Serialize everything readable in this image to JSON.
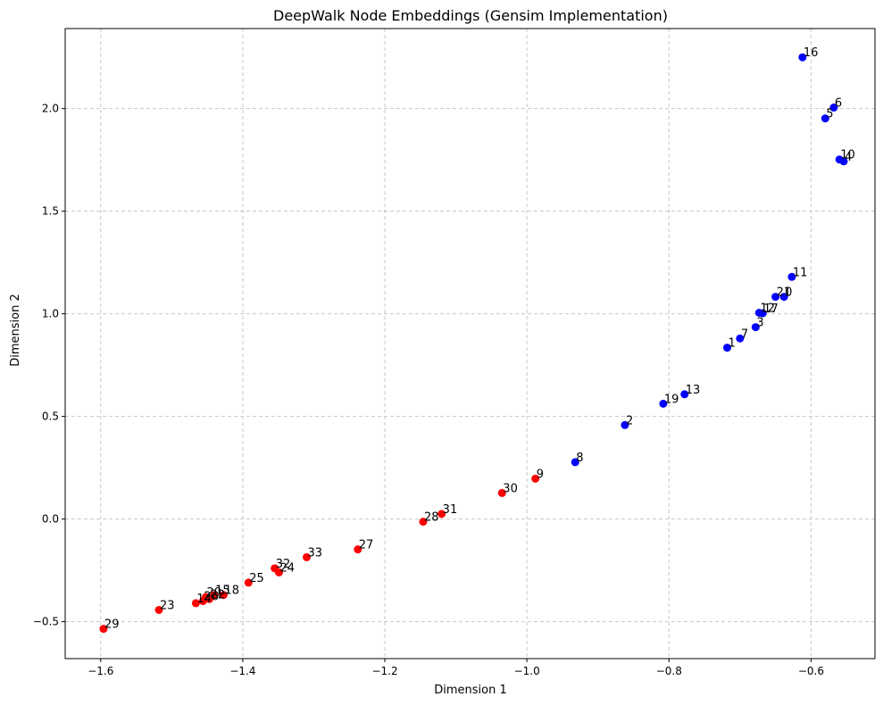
{
  "chart_data": {
    "type": "scatter",
    "title": "DeepWalk Node Embeddings (Gensim Implementation)",
    "xlabel": "Dimension 1",
    "ylabel": "Dimension 2",
    "xlim": [
      -1.65,
      -0.51
    ],
    "ylim": [
      -0.68,
      2.39
    ],
    "xticks": [
      -1.6,
      -1.4,
      -1.2,
      -1.0,
      -0.8,
      -0.6
    ],
    "xtick_labels": [
      "−1.6",
      "−1.4",
      "−1.2",
      "−1.0",
      "−0.8",
      "−0.6"
    ],
    "yticks": [
      -0.5,
      0.0,
      0.5,
      1.0,
      1.5,
      2.0
    ],
    "ytick_labels": [
      "−0.5",
      "0.0",
      "0.5",
      "1.0",
      "1.5",
      "2.0"
    ],
    "grid": true,
    "colors": {
      "group_a": "#0000ff",
      "group_b": "#ff0000",
      "grid": "#c8c8c8"
    },
    "points": [
      {
        "label": "16",
        "x": -0.612,
        "y": 2.25,
        "group": "a"
      },
      {
        "label": "6",
        "x": -0.568,
        "y": 2.005,
        "group": "a"
      },
      {
        "label": "5",
        "x": -0.58,
        "y": 1.952,
        "group": "a"
      },
      {
        "label": "10",
        "x": -0.56,
        "y": 1.752,
        "group": "a"
      },
      {
        "label": "4",
        "x": -0.554,
        "y": 1.743,
        "group": "a"
      },
      {
        "label": "11",
        "x": -0.627,
        "y": 1.18,
        "group": "a"
      },
      {
        "label": "21",
        "x": -0.65,
        "y": 1.083,
        "group": "a"
      },
      {
        "label": "0",
        "x": -0.638,
        "y": 1.083,
        "group": "a"
      },
      {
        "label": "12",
        "x": -0.673,
        "y": 1.005,
        "group": "a"
      },
      {
        "label": "17",
        "x": -0.668,
        "y": 1.003,
        "group": "a"
      },
      {
        "label": "3",
        "x": -0.678,
        "y": 0.935,
        "group": "a"
      },
      {
        "label": "7",
        "x": -0.7,
        "y": 0.88,
        "group": "a"
      },
      {
        "label": "1",
        "x": -0.718,
        "y": 0.835,
        "group": "a"
      },
      {
        "label": "13",
        "x": -0.778,
        "y": 0.608,
        "group": "a"
      },
      {
        "label": "19",
        "x": -0.808,
        "y": 0.562,
        "group": "a"
      },
      {
        "label": "2",
        "x": -0.862,
        "y": 0.458,
        "group": "a"
      },
      {
        "label": "8",
        "x": -0.932,
        "y": 0.277,
        "group": "a"
      },
      {
        "label": "9",
        "x": -0.988,
        "y": 0.197,
        "group": "b"
      },
      {
        "label": "30",
        "x": -1.035,
        "y": 0.127,
        "group": "b"
      },
      {
        "label": "31",
        "x": -1.12,
        "y": 0.025,
        "group": "b"
      },
      {
        "label": "28",
        "x": -1.146,
        "y": -0.013,
        "group": "b"
      },
      {
        "label": "27",
        "x": -1.238,
        "y": -0.148,
        "group": "b"
      },
      {
        "label": "33",
        "x": -1.31,
        "y": -0.186,
        "group": "b"
      },
      {
        "label": "32",
        "x": -1.355,
        "y": -0.24,
        "group": "b"
      },
      {
        "label": "24",
        "x": -1.349,
        "y": -0.26,
        "group": "b"
      },
      {
        "label": "25",
        "x": -1.392,
        "y": -0.31,
        "group": "b"
      },
      {
        "label": "18",
        "x": -1.427,
        "y": -0.37,
        "group": "b"
      },
      {
        "label": "15",
        "x": -1.44,
        "y": -0.37,
        "group": "b"
      },
      {
        "label": "20",
        "x": -1.452,
        "y": -0.38,
        "group": "b"
      },
      {
        "label": "22",
        "x": -1.447,
        "y": -0.39,
        "group": "b"
      },
      {
        "label": "26",
        "x": -1.456,
        "y": -0.4,
        "group": "b"
      },
      {
        "label": "14",
        "x": -1.466,
        "y": -0.41,
        "group": "b"
      },
      {
        "label": "23",
        "x": -1.518,
        "y": -0.443,
        "group": "b"
      },
      {
        "label": "29",
        "x": -1.596,
        "y": -0.535,
        "group": "b"
      }
    ]
  }
}
